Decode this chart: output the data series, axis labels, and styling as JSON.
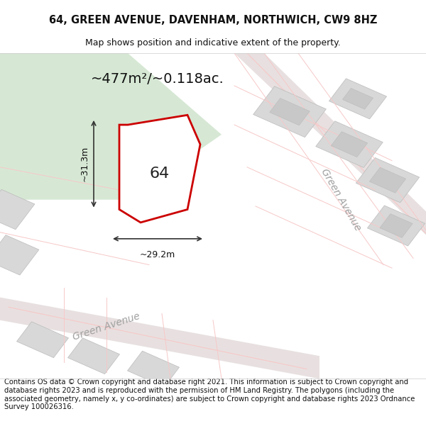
{
  "title_line1": "64, GREEN AVENUE, DAVENHAM, NORTHWICH, CW9 8HZ",
  "title_line2": "Map shows position and indicative extent of the property.",
  "area_text": "~477m²/~0.118ac.",
  "property_number": "64",
  "dim_width": "~29.2m",
  "dim_height": "~31.3m",
  "footer_text": "Contains OS data © Crown copyright and database right 2021. This information is subject to Crown copyright and database rights 2023 and is reproduced with the permission of HM Land Registry. The polygons (including the associated geometry, namely x, y co-ordinates) are subject to Crown copyright and database rights 2023 Ordnance Survey 100026316.",
  "bg_color": "#f5f0f0",
  "map_bg": "#f5f0f0",
  "green_area_color": "#d6e8d4",
  "road_color": "#f7c8c8",
  "building_color": "#d8d8d8",
  "plot_outline_color": "#cc0000",
  "plot_fill_color": "#ffffff",
  "dim_line_color": "#333333",
  "street_label_color": "#a0a0a0",
  "title_color": "#111111",
  "footer_color": "#111111"
}
